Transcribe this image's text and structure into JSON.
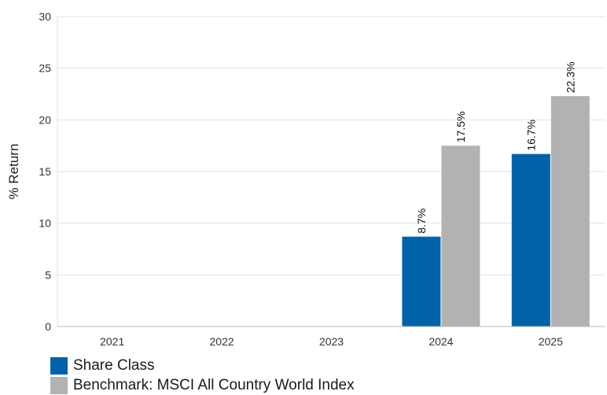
{
  "chart_data": {
    "type": "bar",
    "categories": [
      "2021",
      "2022",
      "2023",
      "2024",
      "2025"
    ],
    "series": [
      {
        "name": "Share Class",
        "color": "#0063aa",
        "values": [
          null,
          null,
          null,
          8.7,
          16.7
        ]
      },
      {
        "name": "Benchmark: MSCI All Country World Index",
        "color": "#b2b2b2",
        "values": [
          null,
          null,
          null,
          17.5,
          22.3
        ]
      }
    ],
    "ylabel": "% Return",
    "ylim": [
      0,
      30
    ],
    "yticks": [
      0,
      5,
      10,
      15,
      20,
      25,
      30
    ],
    "value_label_suffix": "%",
    "grid": true,
    "legend_position": "bottom-left"
  }
}
